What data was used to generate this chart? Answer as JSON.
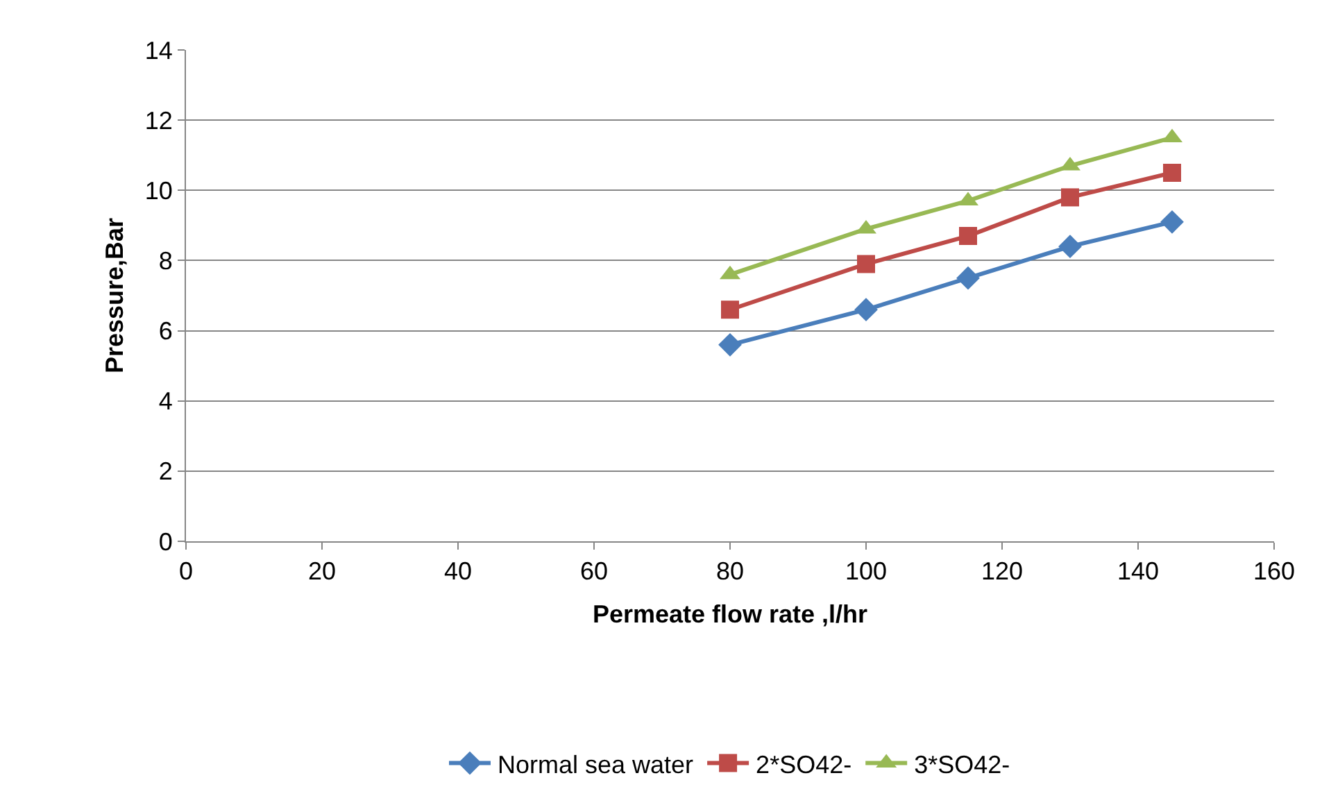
{
  "chart_data": {
    "type": "line",
    "xlabel": "Permeate flow rate ,l/hr",
    "ylabel": "Pressure,Bar",
    "x": [
      80,
      100,
      115,
      130,
      145
    ],
    "series": [
      {
        "name": "Normal sea water",
        "color": "#4a7ebb",
        "marker": "diamond",
        "values": [
          5.6,
          6.6,
          7.5,
          8.4,
          9.1
        ]
      },
      {
        "name": "2*SO42-",
        "color": "#be4b48",
        "marker": "square",
        "values": [
          6.6,
          7.9,
          8.7,
          9.8,
          10.5
        ]
      },
      {
        "name": "3*SO42-",
        "color": "#98b954",
        "marker": "triangle",
        "values": [
          7.6,
          8.9,
          9.7,
          10.7,
          11.5
        ]
      }
    ],
    "xlim": [
      0,
      160
    ],
    "xticks": [
      0,
      20,
      40,
      60,
      80,
      100,
      120,
      140,
      160
    ],
    "ylim": [
      0,
      14
    ],
    "yticks": [
      0,
      2,
      4,
      6,
      8,
      10,
      12,
      14
    ],
    "grid": "y",
    "legend": "bottom",
    "line_style": "solid"
  }
}
